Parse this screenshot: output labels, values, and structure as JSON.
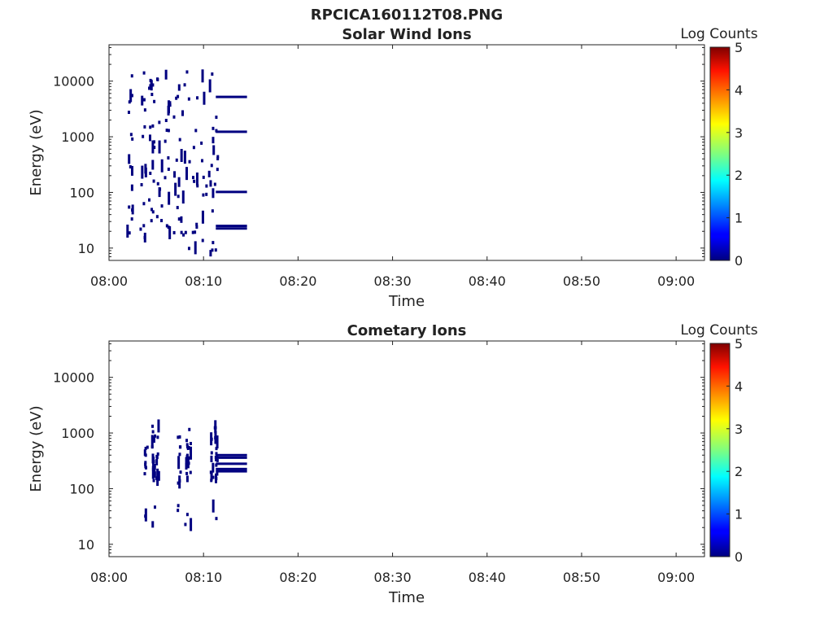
{
  "figure_title": "RPCICA160112T08.PNG",
  "chart_data": [
    {
      "type": "heatmap",
      "title": "Solar Wind Ions",
      "xlabel": "Time",
      "ylabel": "Energy (eV)",
      "x_ticks": [
        "08:00",
        "08:10",
        "08:20",
        "08:30",
        "08:40",
        "08:50",
        "09:00"
      ],
      "xlim_minutes": [
        0,
        63
      ],
      "y_scale": "log",
      "y_ticks": [
        "10",
        "100",
        "1000",
        "10000"
      ],
      "ylim": [
        6,
        45000
      ],
      "colorbar": {
        "label": "Log Counts",
        "range": [
          0,
          5
        ],
        "ticks": [
          "0",
          "1",
          "2",
          "3",
          "4",
          "5"
        ]
      },
      "scattered_cells": {
        "value": 0.3,
        "t_minutes": [
          2.0,
          11.3
        ],
        "energy_eV": [
          8,
          15000
        ],
        "color": "#000080"
      },
      "bands": [
        {
          "t_start_minutes": 11.3,
          "t_end_minutes": 14.6,
          "energy_eV": 5200,
          "value": 0.2
        },
        {
          "t_start_minutes": 11.3,
          "t_end_minutes": 14.6,
          "energy_eV": 1230,
          "value": 0.2
        },
        {
          "t_start_minutes": 11.3,
          "t_end_minutes": 14.6,
          "energy_eV": 102,
          "value": 0.2
        },
        {
          "t_start_minutes": 11.3,
          "t_end_minutes": 14.6,
          "energy_eV": 25,
          "value": 0.2
        },
        {
          "t_start_minutes": 11.3,
          "t_end_minutes": 14.6,
          "energy_eV": 22.5,
          "value": 0.2
        }
      ]
    },
    {
      "type": "heatmap",
      "title": "Cometary Ions",
      "xlabel": "Time",
      "ylabel": "Energy (eV)",
      "x_ticks": [
        "08:00",
        "08:10",
        "08:20",
        "08:30",
        "08:40",
        "08:50",
        "09:00"
      ],
      "xlim_minutes": [
        0,
        63
      ],
      "y_scale": "log",
      "y_ticks": [
        "10",
        "100",
        "1000",
        "10000"
      ],
      "ylim": [
        6,
        45000
      ],
      "colorbar": {
        "label": "Log Counts",
        "range": [
          0,
          5
        ],
        "ticks": [
          "0",
          "1",
          "2",
          "3",
          "4",
          "5"
        ]
      },
      "scattered_cells": {
        "value": 0.3,
        "t_minutes": [
          2.5,
          11.5
        ],
        "energy_eV": [
          22,
          1400
        ],
        "color": "#000080"
      },
      "bands": [
        {
          "t_start_minutes": 11.3,
          "t_end_minutes": 14.6,
          "energy_eV": 400,
          "value": 0.2
        },
        {
          "t_start_minutes": 11.3,
          "t_end_minutes": 14.6,
          "energy_eV": 360,
          "value": 0.2
        },
        {
          "t_start_minutes": 11.3,
          "t_end_minutes": 14.6,
          "energy_eV": 280,
          "value": 0.2
        },
        {
          "t_start_minutes": 11.3,
          "t_end_minutes": 14.6,
          "energy_eV": 225,
          "value": 0.2
        },
        {
          "t_start_minutes": 11.3,
          "t_end_minutes": 14.6,
          "energy_eV": 205,
          "value": 0.2
        }
      ]
    }
  ]
}
